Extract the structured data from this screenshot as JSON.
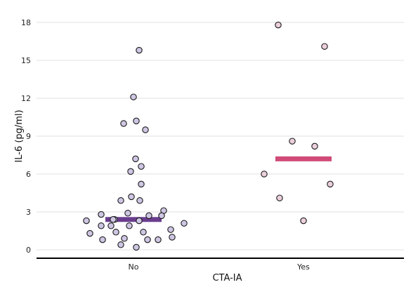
{
  "chart_data": {
    "type": "scatter",
    "xlabel": "CTA-IA",
    "ylabel": "IL-6 (pg/ml)",
    "categories": [
      "No",
      "Yes"
    ],
    "ylim": [
      -0.6,
      19
    ],
    "yticks": [
      0,
      3,
      6,
      9,
      12,
      15,
      18
    ],
    "grid": true,
    "colors": {
      "No": {
        "point": "#cfc6e4",
        "median": "#6a3d8f"
      },
      "Yes": {
        "point": "#eccfdc",
        "median": "#d04b78"
      }
    },
    "series": [
      {
        "category": "No",
        "median": 2.4,
        "values": [
          15.8,
          12.1,
          10.2,
          10.0,
          9.5,
          7.2,
          6.6,
          6.2,
          5.2,
          4.2,
          3.9,
          3.9,
          3.1,
          2.9,
          2.8,
          2.7,
          2.7,
          2.4,
          2.4,
          2.3,
          2.3,
          2.1,
          1.9,
          1.9,
          1.9,
          1.6,
          1.4,
          1.4,
          1.3,
          1.0,
          0.9,
          0.8,
          0.8,
          0.8,
          0.4,
          0.2
        ]
      },
      {
        "category": "Yes",
        "median": 7.2,
        "values": [
          17.8,
          16.1,
          8.6,
          8.2,
          6.0,
          5.2,
          4.1,
          2.3
        ]
      }
    ]
  }
}
